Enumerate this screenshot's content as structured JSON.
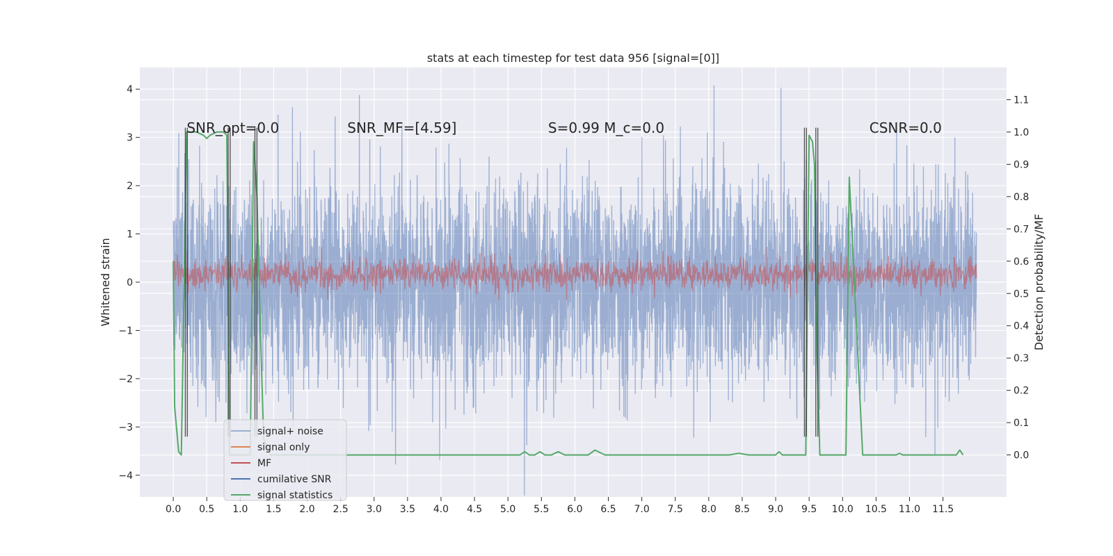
{
  "chart_data": {
    "type": "line",
    "title": "stats at each timestep for test data 956 [signal=[0]]",
    "xlabel": "",
    "ylabel": "Whitened strain",
    "y2label": "Detection probability/MF",
    "xlim": [
      -0.5,
      12.45
    ],
    "ylim": [
      -4.45,
      4.45
    ],
    "y2lim": [
      -0.13,
      1.2
    ],
    "x_ticks": [
      0.0,
      0.5,
      1.0,
      1.5,
      2.0,
      2.5,
      3.0,
      3.5,
      4.0,
      4.5,
      5.0,
      5.5,
      6.0,
      6.5,
      7.0,
      7.5,
      8.0,
      8.5,
      9.0,
      9.5,
      10.0,
      10.5,
      11.0,
      11.5
    ],
    "x_tick_labels": [
      "0.0",
      "0.5",
      "1.0",
      "1.5",
      "2.0",
      "2.5",
      "3.0",
      "3.5",
      "4.0",
      "4.5",
      "5.0",
      "5.5",
      "6.0",
      "6.5",
      "7.0",
      "7.5",
      "8.0",
      "8.5",
      "9.0",
      "9.5",
      "10.0",
      "10.5",
      "11.0",
      "11.5"
    ],
    "y_ticks": [
      -4,
      -3,
      -2,
      -1,
      0,
      1,
      2,
      3,
      4
    ],
    "y_tick_labels": [
      "−4",
      "−3",
      "−2",
      "−1",
      "0",
      "1",
      "2",
      "3",
      "4"
    ],
    "y2_ticks": [
      0.0,
      0.1,
      0.2,
      0.3,
      0.4,
      0.5,
      0.6,
      0.7,
      0.8,
      0.9,
      1.0,
      1.1
    ],
    "y2_tick_labels": [
      "0.0",
      "0.1",
      "0.2",
      "0.3",
      "0.4",
      "0.5",
      "0.6",
      "0.7",
      "0.8",
      "0.9",
      "1.0",
      "1.1"
    ],
    "grid": true,
    "legend_position": "lower-left",
    "annotations": [
      {
        "text": "SNR_opt=0.0",
        "x": 0.2,
        "y": 3.2
      },
      {
        "text": "SNR_MF=[4.59]",
        "x": 2.6,
        "y": 3.2
      },
      {
        "text": "S=0.99   M_c=0.0",
        "x": 5.6,
        "y": 3.2
      },
      {
        "text": "CSNR=0.0",
        "x": 10.4,
        "y": 3.2
      }
    ],
    "legend_entries": [
      "signal+ noise",
      "signal only",
      "MF",
      "cumilative SNR",
      "signal statistics"
    ],
    "series": [
      {
        "name": "signal+ noise",
        "color": "#4c72b0",
        "axis": "left",
        "style": "noise",
        "x_range": [
          0.0,
          12.0
        ],
        "mean": 0.0,
        "std": 1.0,
        "n_points": 4800,
        "peak_points": [
          [
            2.78,
            3.88
          ],
          [
            8.08,
            4.08
          ],
          [
            9.08,
            4.03
          ],
          [
            3.32,
            -3.78
          ],
          [
            3.98,
            -3.68
          ],
          [
            11.38,
            -3.58
          ],
          [
            5.28,
            -3.38
          ],
          [
            1.78,
            3.63
          ]
        ]
      },
      {
        "name": "signal only",
        "color": "#dd8452",
        "axis": "left",
        "style": "flat",
        "x_range": [
          0.0,
          12.0
        ],
        "value": 0.0
      },
      {
        "name": "MF",
        "color": "#c44e52",
        "axis": "right",
        "style": "noise",
        "x_range": [
          0.0,
          12.0
        ],
        "mean": 0.56,
        "std": 0.025,
        "n_points": 1800
      },
      {
        "name": "cumilative SNR",
        "color": "#4c72b0",
        "axis": "left",
        "style": "flat",
        "x_range": [
          0.0,
          12.0
        ],
        "value": 0.0
      },
      {
        "name": "signal statistics",
        "color": "#55a868",
        "axis": "right",
        "style": "line",
        "x": [
          0.0,
          0.02,
          0.08,
          0.12,
          0.16,
          0.2,
          0.25,
          0.35,
          0.45,
          0.5,
          0.55,
          0.65,
          0.75,
          0.8,
          0.84,
          0.9,
          1.15,
          1.2,
          1.25,
          1.3,
          1.35,
          1.45,
          5.18,
          5.25,
          5.32,
          5.4,
          5.48,
          5.55,
          5.65,
          5.75,
          5.85,
          5.95,
          6.2,
          6.3,
          6.45,
          8.3,
          8.45,
          8.6,
          9.0,
          9.05,
          9.1,
          9.45,
          9.5,
          9.55,
          9.58,
          9.62,
          9.66,
          10.0,
          10.05,
          10.1,
          10.3,
          10.8,
          10.85,
          10.9,
          11.0,
          11.7,
          11.75,
          11.8
        ],
        "y": [
          0.6,
          0.15,
          0.01,
          0.0,
          0.5,
          1.0,
          1.0,
          1.0,
          0.99,
          0.98,
          0.99,
          1.0,
          1.0,
          0.99,
          0.0,
          0.0,
          0.0,
          0.97,
          0.8,
          0.4,
          0.05,
          0.0,
          0.0,
          0.01,
          0.0,
          0.0,
          0.01,
          0.0,
          0.0,
          0.01,
          0.0,
          0.0,
          0.0,
          0.015,
          0.0,
          0.0,
          0.005,
          0.0,
          0.0,
          0.01,
          0.0,
          0.0,
          0.99,
          0.97,
          0.9,
          0.3,
          0.0,
          0.0,
          0.0,
          0.86,
          0.0,
          0.0,
          0.005,
          0.0,
          0.0,
          0.0,
          0.015,
          0.0
        ]
      }
    ],
    "vertical_markers": [
      0.18,
      0.82,
      1.22,
      9.43,
      9.6
    ]
  }
}
